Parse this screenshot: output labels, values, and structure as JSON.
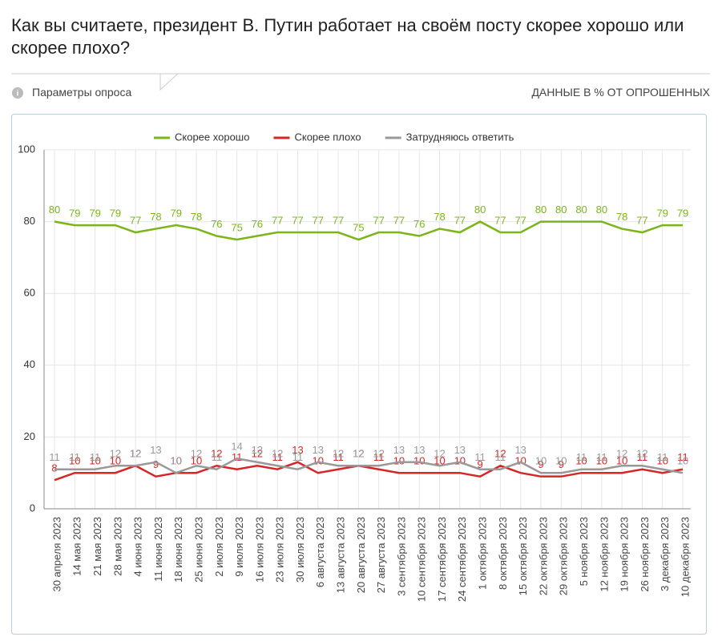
{
  "header": {
    "title": "Как вы считаете, президент В. Путин работает на своём посту скорее хорошо или скорее плохо?",
    "params": "Параметры опроса",
    "units": "ДАННЫЕ В % ОТ ОПРОШЕННЫХ"
  },
  "chart_data": {
    "type": "line",
    "categories": [
      "30 апреля 2023",
      "14 мая 2023",
      "21 мая 2023",
      "28 мая 2023",
      "4 июня 2023",
      "11 июня 2023",
      "18 июня 2023",
      "25 июня 2023",
      "2 июля 2023",
      "9 июля 2023",
      "16 июля 2023",
      "23 июля 2023",
      "30 июля 2023",
      "6 августа 2023",
      "13 августа 2023",
      "20 августа 2023",
      "27 августа 2023",
      "3 сентября 2023",
      "10 сентября 2023",
      "17 сентября 2023",
      "24 сентября 2023",
      "1 октября 2023",
      "8 октября 2023",
      "15 октября 2023",
      "22 октября 2023",
      "29 октября 2023",
      "5 ноября 2023",
      "12 ноября 2023",
      "19 ноября 2023",
      "26 ноября 2023",
      "3 декабря 2023",
      "10 декабря 2023"
    ],
    "series": [
      {
        "name": "Скорее хорошо",
        "color": "#7cb518",
        "values": [
          80,
          79,
          79,
          79,
          77,
          78,
          79,
          78,
          76,
          75,
          76,
          77,
          77,
          77,
          77,
          75,
          77,
          77,
          76,
          78,
          77,
          80,
          77,
          77,
          80,
          80,
          80,
          80,
          78,
          77,
          79,
          79
        ]
      },
      {
        "name": "Скорее плохо",
        "color": "#d62728",
        "values": [
          8,
          10,
          10,
          10,
          12,
          9,
          10,
          10,
          12,
          11,
          12,
          11,
          13,
          10,
          11,
          12,
          11,
          10,
          10,
          10,
          10,
          9,
          12,
          10,
          9,
          9,
          10,
          10,
          10,
          11,
          10,
          11
        ]
      },
      {
        "name": "Затрудняюсь ответить",
        "color": "#999999",
        "values": [
          11,
          11,
          11,
          12,
          12,
          13,
          10,
          12,
          11,
          14,
          13,
          12,
          11,
          13,
          12,
          12,
          12,
          13,
          13,
          12,
          13,
          11,
          11,
          13,
          10,
          10,
          11,
          11,
          12,
          12,
          11,
          10
        ]
      }
    ],
    "ylim": [
      0,
      100
    ],
    "yticks": [
      0,
      20,
      40,
      60,
      80,
      100
    ],
    "grid": true,
    "legend": "top"
  }
}
